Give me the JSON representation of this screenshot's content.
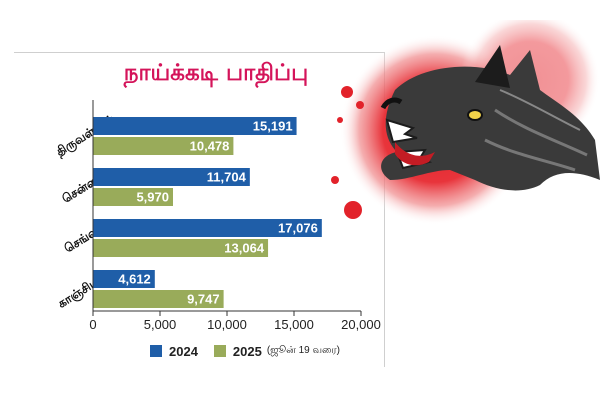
{
  "colors": {
    "series_2024": "#1f5ea8",
    "series_2025": "#99ab5a",
    "title": "#d4145a",
    "blood": "#e2222a"
  },
  "chart_data": {
    "type": "bar",
    "orientation": "horizontal",
    "title": "நாய்க்கடி பாதிப்பு",
    "categories": [
      "திருவள்ளூர்",
      "சென்னை",
      "செங்கை",
      "காஞ்சிபுரம்"
    ],
    "series": [
      {
        "name": "2024",
        "values": [
          15191,
          11704,
          17076,
          4612
        ],
        "labels": [
          "15,191",
          "11,704",
          "17,076",
          "4,612"
        ]
      },
      {
        "name": "2025",
        "values": [
          10478,
          5970,
          13064,
          9747
        ],
        "labels": [
          "10,478",
          "5,970",
          "13,064",
          "9,747"
        ]
      }
    ],
    "xlim": [
      0,
      20000
    ],
    "xticks": [
      0,
      5000,
      10000,
      15000,
      20000
    ],
    "xtick_labels": [
      "0",
      "5,000",
      "10,000",
      "15,000",
      "20,000"
    ],
    "grid": false,
    "legend_position": "bottom"
  },
  "legend": {
    "label_2024": "2024",
    "label_2025": "2025",
    "note_2025": "(ஜூன் 19 வரை)"
  },
  "illustration": {
    "icon": "angry-dog-icon",
    "splash": "blood-splash-icon"
  }
}
